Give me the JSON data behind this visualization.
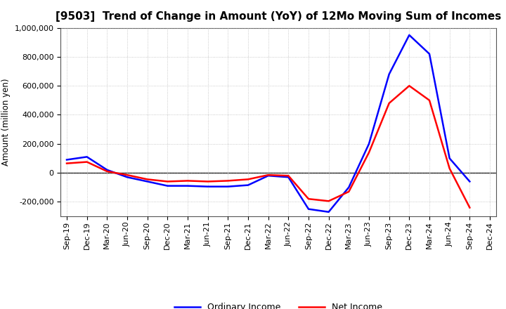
{
  "title": "[9503]  Trend of Change in Amount (YoY) of 12Mo Moving Sum of Incomes",
  "ylabel": "Amount (million yen)",
  "labels": [
    "Sep-19",
    "Dec-19",
    "Mar-20",
    "Jun-20",
    "Sep-20",
    "Dec-20",
    "Mar-21",
    "Jun-21",
    "Sep-21",
    "Dec-21",
    "Mar-22",
    "Jun-22",
    "Sep-22",
    "Dec-22",
    "Mar-23",
    "Jun-23",
    "Sep-23",
    "Dec-23",
    "Mar-24",
    "Jun-24",
    "Sep-24",
    "Dec-24"
  ],
  "ordinary_income": [
    90000,
    110000,
    20000,
    -30000,
    -60000,
    -90000,
    -90000,
    -95000,
    -95000,
    -85000,
    -20000,
    -30000,
    -250000,
    -270000,
    -100000,
    200000,
    680000,
    950000,
    820000,
    100000,
    -60000,
    null
  ],
  "net_income": [
    65000,
    75000,
    10000,
    -15000,
    -45000,
    -60000,
    -55000,
    -60000,
    -55000,
    -45000,
    -15000,
    -20000,
    -180000,
    -195000,
    -130000,
    140000,
    480000,
    600000,
    500000,
    30000,
    -240000,
    null
  ],
  "ordinary_color": "#0000FF",
  "net_color": "#FF0000",
  "ylim": [
    -300000,
    1000000
  ],
  "yticks": [
    -200000,
    0,
    200000,
    400000,
    600000,
    800000,
    1000000
  ],
  "background_color": "#FFFFFF",
  "grid_color": "#BBBBBB",
  "line_width": 1.8,
  "title_fontsize": 11,
  "axis_fontsize": 8.5,
  "tick_fontsize": 8,
  "legend_fontsize": 9
}
